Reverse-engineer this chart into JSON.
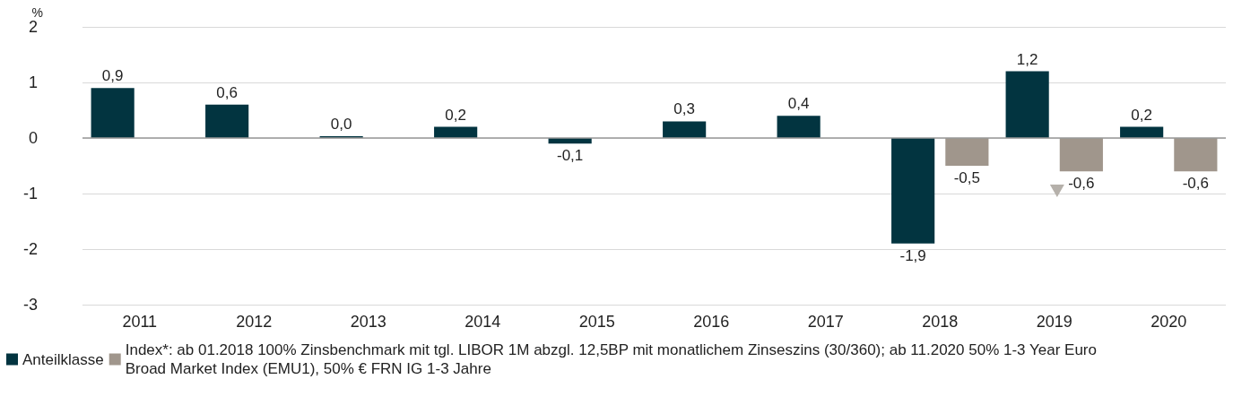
{
  "chart_data": {
    "type": "bar",
    "ylabel": "%",
    "categories": [
      "2011",
      "2012",
      "2013",
      "2014",
      "2015",
      "2016",
      "2017",
      "2018",
      "2019",
      "2020"
    ],
    "series": [
      {
        "name": "Anteilklasse",
        "color": "#023440",
        "values": [
          0.9,
          0.6,
          0.0,
          0.2,
          -0.1,
          0.3,
          0.4,
          -1.9,
          1.2,
          0.2
        ],
        "value_labels": [
          "0,9",
          "0,6",
          "0,0",
          "0,2",
          "-0,1",
          "0,3",
          "0,4",
          "-1,9",
          "1,2",
          "0,2"
        ]
      },
      {
        "name": "Index*: ab 01.2018 100% Zinsbenchmark mit tgl. LIBOR 1M abzgl. 12,5BP mit monatlichem Zinseszins (30/360); ab 11.2020 50% 1-3 Year Euro Broad Market Index (EMU1), 50% € FRN IG 1-3 Jahre",
        "color": "#a0968c",
        "values": [
          null,
          null,
          null,
          null,
          null,
          null,
          null,
          -0.5,
          -0.6,
          -0.6
        ],
        "value_labels": [
          null,
          null,
          null,
          null,
          null,
          null,
          null,
          "-0,5",
          "-0,6",
          "-0,6"
        ]
      }
    ],
    "ylim": [
      -3,
      2
    ],
    "yticks": [
      -3,
      -2,
      -1,
      0,
      1,
      2
    ],
    "grid": "y",
    "legend": "bottom left"
  }
}
